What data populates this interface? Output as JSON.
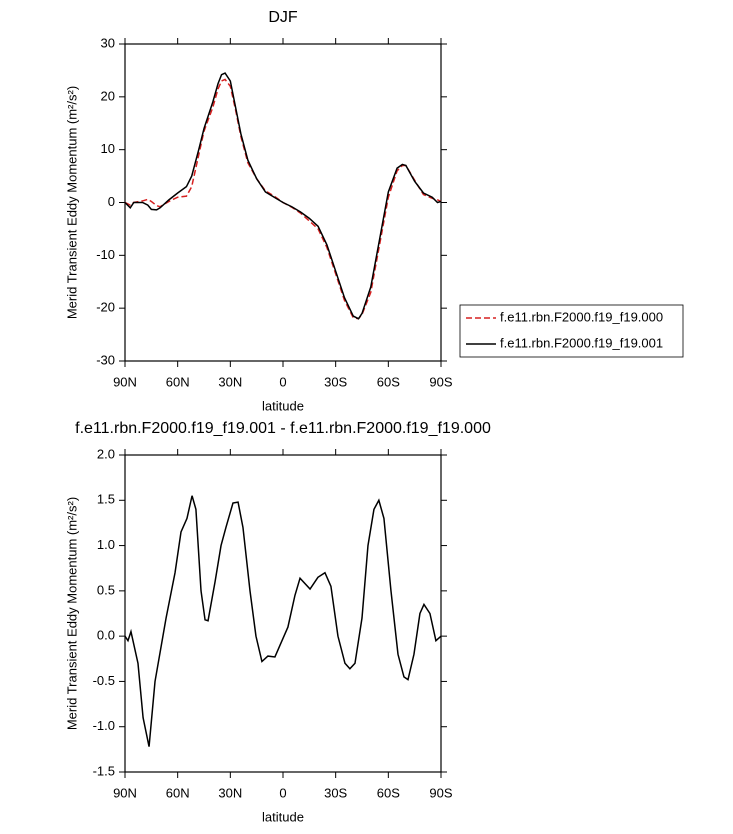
{
  "chart_data": [
    {
      "type": "line",
      "title": "DJF",
      "xlabel": "latitude",
      "ylabel": "Merid Transient Eddy Momentum (m²/s²)",
      "x": [
        90,
        87,
        85,
        80,
        77,
        75,
        72,
        70,
        65,
        60,
        55,
        52,
        48,
        45,
        40,
        37,
        35,
        33,
        30,
        27,
        24,
        20,
        15,
        10,
        5,
        0,
        -5,
        -10,
        -15,
        -20,
        -25,
        -30,
        -35,
        -40,
        -43,
        -45,
        -50,
        -55,
        -60,
        -65,
        -68,
        -70,
        -75,
        -80,
        -85,
        -88,
        -90
      ],
      "series": [
        {
          "name": "f.e11.rbn.F2000.f19_f19.000",
          "color": "#d62020",
          "line_style": "dashed",
          "values": [
            0,
            -0.5,
            0,
            0.3,
            0.6,
            0.2,
            -0.6,
            -0.8,
            0.2,
            1,
            1.2,
            3,
            9,
            13.5,
            18,
            21.5,
            23,
            23.3,
            22,
            17.5,
            12.5,
            7.5,
            4.5,
            2.2,
            1.2,
            0,
            -0.9,
            -2,
            -3.5,
            -5,
            -8.5,
            -13.5,
            -18.5,
            -21.8,
            -22,
            -21.2,
            -17,
            -8,
            1,
            6,
            7,
            7,
            4.2,
            1.5,
            0.8,
            0.5,
            0.2
          ]
        },
        {
          "name": "f.e11.rbn.F2000.f19_f19.001",
          "color": "#000000",
          "line_style": "solid",
          "values": [
            0,
            -1,
            0,
            0,
            -0.5,
            -1.3,
            -1.4,
            -1,
            0.5,
            1.8,
            3,
            5,
            10,
            14,
            19,
            22.5,
            24.2,
            24.5,
            23,
            18,
            13,
            8,
            4.5,
            2,
            1,
            0,
            -0.8,
            -1.8,
            -3,
            -4.5,
            -8,
            -13,
            -18,
            -21.5,
            -22,
            -21,
            -16,
            -7,
            2,
            6.5,
            7.2,
            7,
            4,
            1.8,
            1,
            0,
            0.2
          ]
        }
      ],
      "xlim": [
        90,
        -90
      ],
      "xticks": [
        {
          "value": 90,
          "label": "90N"
        },
        {
          "value": 60,
          "label": "60N"
        },
        {
          "value": 30,
          "label": "30N"
        },
        0,
        {
          "value": -30,
          "label": "30S"
        },
        {
          "value": -60,
          "label": "60S"
        },
        {
          "value": -90,
          "label": "90S"
        }
      ],
      "ylim": [
        -30,
        30
      ],
      "yticks": [
        -30,
        -20,
        -10,
        0,
        10,
        20,
        30
      ],
      "legend": "right"
    },
    {
      "type": "line",
      "title": "f.e11.rbn.F2000.f19_f19.001 - f.e11.rbn.F2000.f19_f19.000",
      "xlabel": "latitude",
      "ylabel": "Merid Transient Eddy Momentum (m²/s²)",
      "x": [
        90,
        88.3,
        86.6,
        82.6,
        79.7,
        76.3,
        72.9,
        66.6,
        61.5,
        58.1,
        54.7,
        51.8,
        49.6,
        46.7,
        44.4,
        42.7,
        38.7,
        35.3,
        32.5,
        28.5,
        25.6,
        22.8,
        18.8,
        15.4,
        12,
        8.6,
        4.6,
        1.7,
        -2.8,
        -6.8,
        -9.7,
        -15.4,
        -19.9,
        -23.9,
        -27.3,
        -31.3,
        -35.3,
        -38.1,
        -41,
        -45,
        -48.4,
        -51.8,
        -54.6,
        -57.5,
        -61.5,
        -65.5,
        -68.9,
        -71.2,
        -74.6,
        -78,
        -80.3,
        -83.7,
        -87.1,
        -90
      ],
      "values": [
        0,
        -0.05,
        0.05,
        -0.3,
        -0.9,
        -1.22,
        -0.5,
        0.2,
        0.7,
        1.15,
        1.3,
        1.55,
        1.4,
        0.5,
        0.18,
        0.17,
        0.6,
        1.0,
        1.2,
        1.47,
        1.48,
        1.2,
        0.5,
        0.0,
        -0.28,
        -0.22,
        -0.23,
        -0.1,
        0.1,
        0.45,
        0.64,
        0.52,
        0.65,
        0.7,
        0.55,
        0.0,
        -0.3,
        -0.36,
        -0.3,
        0.2,
        1.0,
        1.4,
        1.5,
        1.3,
        0.5,
        -0.2,
        -0.45,
        -0.48,
        -0.2,
        0.25,
        0.35,
        0.25,
        -0.05,
        0.0
      ],
      "color": "#000000",
      "xlim": [
        90,
        -90
      ],
      "xticks": [
        {
          "value": 90,
          "label": "90N"
        },
        {
          "value": 60,
          "label": "60N"
        },
        {
          "value": 30,
          "label": "30N"
        },
        0,
        {
          "value": -30,
          "label": "30S"
        },
        {
          "value": -60,
          "label": "60S"
        },
        {
          "value": -90,
          "label": "90S"
        }
      ],
      "ylim": [
        -1.5,
        2.0
      ],
      "yticks": [
        -1.5,
        {
          "value": -1.0,
          "label": "-1.0"
        },
        -0.5,
        {
          "value": 0,
          "label": "0.0"
        },
        0.5,
        {
          "value": 1.0,
          "label": "1.0"
        },
        1.5,
        {
          "value": 2.0,
          "label": "2.0"
        }
      ]
    }
  ]
}
